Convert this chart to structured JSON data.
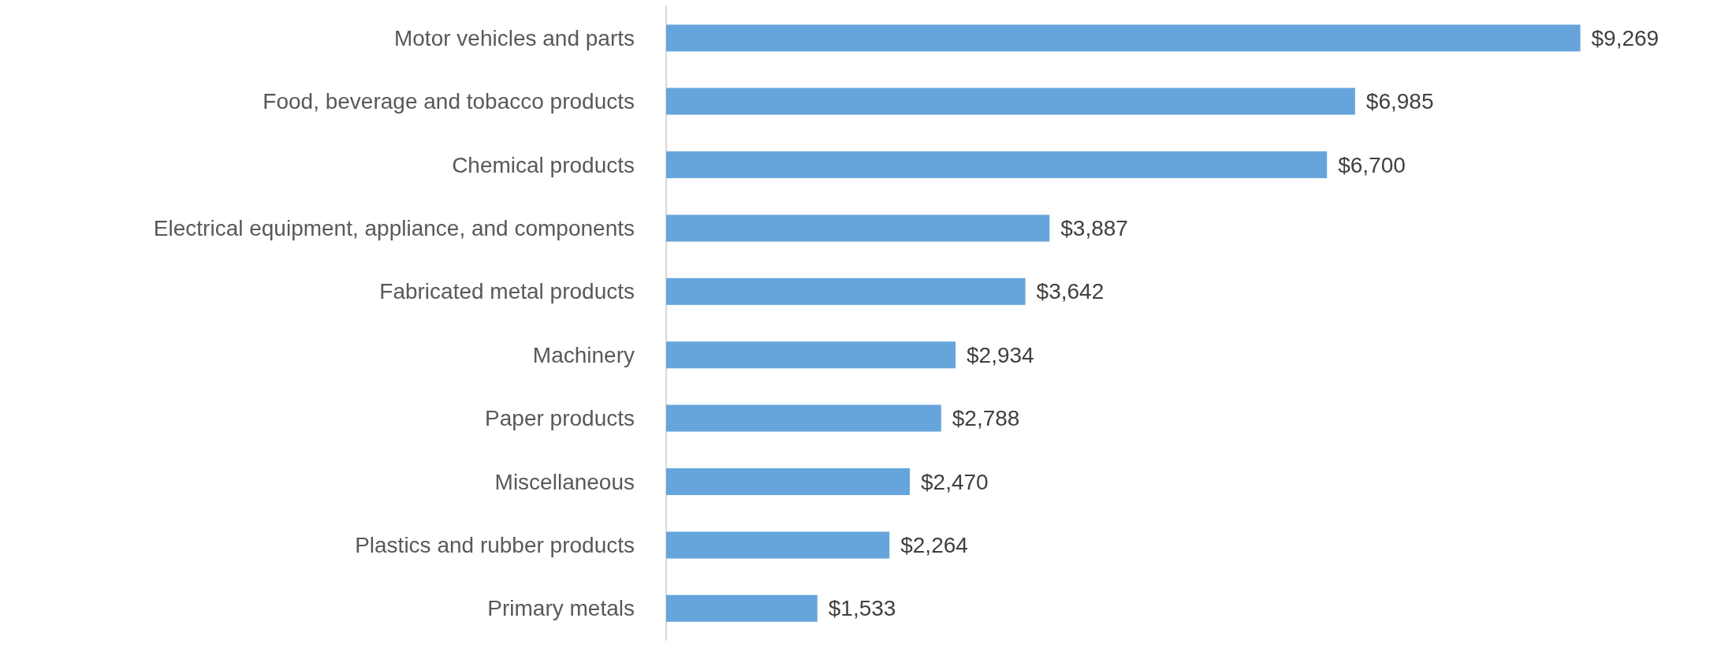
{
  "chart_data": {
    "type": "bar",
    "orientation": "horizontal",
    "categories": [
      "Motor vehicles and parts",
      "Food, beverage and tobacco products",
      "Chemical products",
      "Electrical equipment, appliance, and components",
      "Fabricated metal products",
      "Machinery",
      "Paper products",
      "Miscellaneous",
      "Plastics and rubber products",
      "Primary metals"
    ],
    "values": [
      9269,
      6985,
      6700,
      3887,
      3642,
      2934,
      2788,
      2470,
      2264,
      1533
    ],
    "value_labels": [
      "$9,269",
      "$6,985",
      "$6,700",
      "$3,887",
      "$3,642",
      "$2,934",
      "$2,788",
      "$2,470",
      "$2,264",
      "$1,533"
    ],
    "color": "#66a5db"
  }
}
